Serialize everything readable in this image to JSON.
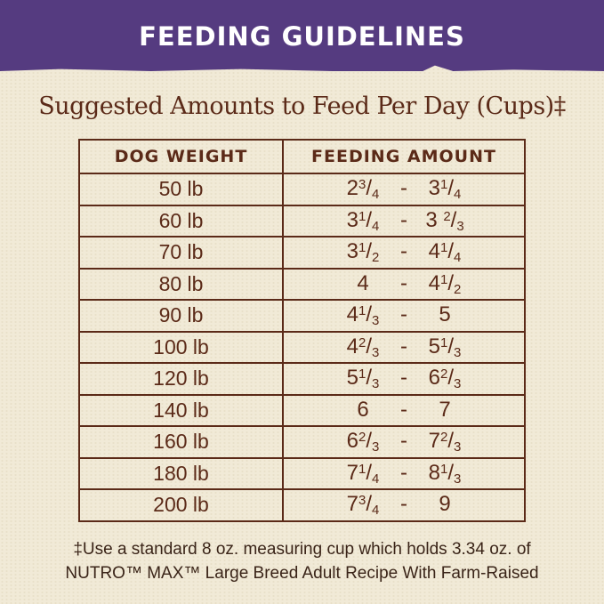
{
  "header": {
    "title": "FEEDING GUIDELINES"
  },
  "subtitle": "Suggested Amounts to Feed Per Day (Cups)‡",
  "table": {
    "headers": [
      "DOG WEIGHT",
      "FEEDING AMOUNT"
    ],
    "separator": "-",
    "rows": [
      {
        "weight": "50 lb",
        "low": {
          "w": "2",
          "n": "3",
          "d": "4"
        },
        "high": {
          "w": "3",
          "n": "1",
          "d": "4"
        }
      },
      {
        "weight": "60 lb",
        "low": {
          "w": "3",
          "n": "1",
          "d": "4"
        },
        "high": {
          "w": "3 ",
          "n": "2",
          "d": "3"
        }
      },
      {
        "weight": "70 lb",
        "low": {
          "w": "3",
          "n": "1",
          "d": "2"
        },
        "high": {
          "w": "4",
          "n": "1",
          "d": "4"
        }
      },
      {
        "weight": "80 lb",
        "low": {
          "w": "4"
        },
        "high": {
          "w": "4",
          "n": "1",
          "d": "2"
        }
      },
      {
        "weight": "90 lb",
        "low": {
          "w": "4",
          "n": "1",
          "d": "3"
        },
        "high": {
          "w": "5"
        }
      },
      {
        "weight": "100 lb",
        "low": {
          "w": "4",
          "n": "2",
          "d": "3"
        },
        "high": {
          "w": "5",
          "n": "1",
          "d": "3"
        }
      },
      {
        "weight": "120 lb",
        "low": {
          "w": "5",
          "n": "1",
          "d": "3"
        },
        "high": {
          "w": "6",
          "n": "2",
          "d": "3"
        }
      },
      {
        "weight": "140 lb",
        "low": {
          "w": "6"
        },
        "high": {
          "w": "7"
        }
      },
      {
        "weight": "160 lb",
        "low": {
          "w": "6",
          "n": "2",
          "d": "3"
        },
        "high": {
          "w": "7",
          "n": "2",
          "d": "3"
        }
      },
      {
        "weight": "180 lb",
        "low": {
          "w": "7",
          "n": "1",
          "d": "4"
        },
        "high": {
          "w": "8",
          "n": "1",
          "d": "3"
        }
      },
      {
        "weight": "200 lb",
        "low": {
          "w": "7",
          "n": "3",
          "d": "4"
        },
        "high": {
          "w": "9"
        }
      }
    ]
  },
  "footer": {
    "line1": "‡Use a standard 8 oz. measuring cup which holds 3.34 oz. of",
    "line2": "NUTRO™ MAX™ Large Breed Adult Recipe With Farm-Raised"
  },
  "colors": {
    "banner": "#553b80",
    "text": "#5b2a18",
    "background": "#f1ead7"
  }
}
